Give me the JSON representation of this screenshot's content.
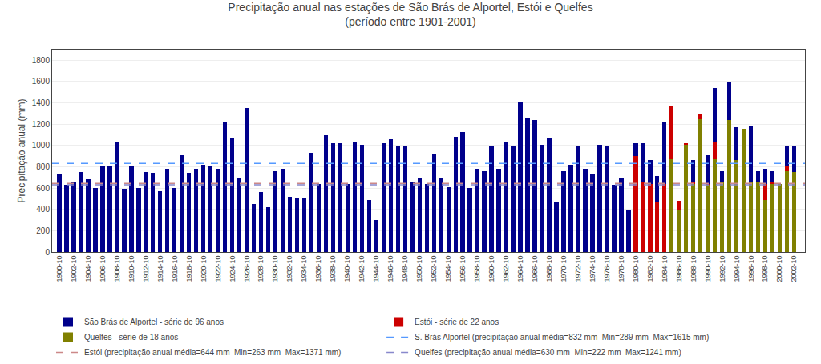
{
  "chart_data": {
    "type": "bar",
    "title": "Precipitação anual nas estações de São Brás de Alportel, Estói e Quelfes\n(período entre 1901-2001)",
    "ylabel": "Precipitação anual (mm)",
    "xlim": [
      1899,
      2003.5
    ],
    "xticks": [
      {
        "value": 1900,
        "label": "1900-10"
      },
      {
        "value": 1902,
        "label": "1902-10"
      },
      {
        "value": 1904,
        "label": "1904-10"
      },
      {
        "value": 1906,
        "label": "1906-10"
      },
      {
        "value": 1908,
        "label": "1908-10"
      },
      {
        "value": 1910,
        "label": "1910-10"
      },
      {
        "value": 1912,
        "label": "1912-10"
      },
      {
        "value": 1914,
        "label": "1914-10"
      },
      {
        "value": 1916,
        "label": "1916-10"
      },
      {
        "value": 1918,
        "label": "1918-10"
      },
      {
        "value": 1920,
        "label": "1920-10"
      },
      {
        "value": 1922,
        "label": "1922-10"
      },
      {
        "value": 1924,
        "label": "1924-10"
      },
      {
        "value": 1926,
        "label": "1926-10"
      },
      {
        "value": 1928,
        "label": "1928-10"
      },
      {
        "value": 1930,
        "label": "1930-10"
      },
      {
        "value": 1932,
        "label": "1932-10"
      },
      {
        "value": 1934,
        "label": "1934-10"
      },
      {
        "value": 1936,
        "label": "1936-10"
      },
      {
        "value": 1938,
        "label": "1938-10"
      },
      {
        "value": 1940,
        "label": "1940-10"
      },
      {
        "value": 1942,
        "label": "1942-10"
      },
      {
        "value": 1944,
        "label": "1944-10"
      },
      {
        "value": 1946,
        "label": "1946-10"
      },
      {
        "value": 1948,
        "label": "1948-10"
      },
      {
        "value": 1950,
        "label": "1950-10"
      },
      {
        "value": 1952,
        "label": "1952-10"
      },
      {
        "value": 1954,
        "label": "1954-10"
      },
      {
        "value": 1956,
        "label": "1956-10"
      },
      {
        "value": 1958,
        "label": "1958-10"
      },
      {
        "value": 1960,
        "label": "1960-10"
      },
      {
        "value": 1962,
        "label": "1962-10"
      },
      {
        "value": 1964,
        "label": "1964-10"
      },
      {
        "value": 1966,
        "label": "1966-10"
      },
      {
        "value": 1968,
        "label": "1968-10"
      },
      {
        "value": 1970,
        "label": "1970-10"
      },
      {
        "value": 1972,
        "label": "1972-10"
      },
      {
        "value": 1974,
        "label": "1974-10"
      },
      {
        "value": 1976,
        "label": "1976-10"
      },
      {
        "value": 1978,
        "label": "1978-10"
      },
      {
        "value": 1980,
        "label": "1980-10"
      },
      {
        "value": 1982,
        "label": "1982-10"
      },
      {
        "value": 1984,
        "label": "1984-10"
      },
      {
        "value": 1986,
        "label": "1986-10"
      },
      {
        "value": 1988,
        "label": "1988-10"
      },
      {
        "value": 1990,
        "label": "1990-10"
      },
      {
        "value": 1992,
        "label": "1992-10"
      },
      {
        "value": 1994,
        "label": "1994-10"
      },
      {
        "value": 1996,
        "label": "1996-10"
      },
      {
        "value": 1998,
        "label": "1998-10"
      },
      {
        "value": 2000,
        "label": "2000-10"
      },
      {
        "value": 2002,
        "label": "2002-10"
      }
    ],
    "ylim": [
      0,
      1900
    ],
    "yticks": [
      0,
      200,
      400,
      600,
      800,
      1000,
      1200,
      1400,
      1600,
      1800
    ],
    "grid": "y",
    "legend": "bottom",
    "series": [
      {
        "name": "São Brás de Alportel - série de 96 anos",
        "type": "bar",
        "color": "#00008B",
        "x": [
          1900,
          1901,
          1902,
          1903,
          1904,
          1905,
          1906,
          1907,
          1908,
          1909,
          1910,
          1911,
          1912,
          1913,
          1914,
          1915,
          1916,
          1917,
          1918,
          1919,
          1920,
          1921,
          1922,
          1923,
          1924,
          1925,
          1926,
          1927,
          1928,
          1929,
          1930,
          1931,
          1932,
          1933,
          1934,
          1935,
          1936,
          1937,
          1938,
          1939,
          1940,
          1941,
          1942,
          1943,
          1944,
          1945,
          1946,
          1947,
          1948,
          1949,
          1950,
          1951,
          1952,
          1953,
          1954,
          1955,
          1956,
          1957,
          1958,
          1959,
          1960,
          1961,
          1962,
          1963,
          1964,
          1965,
          1966,
          1967,
          1968,
          1969,
          1970,
          1971,
          1972,
          1973,
          1974,
          1975,
          1976,
          1977,
          1978,
          1979,
          1980,
          1981,
          1982,
          1983,
          1984,
          1985,
          1986,
          1987,
          1988,
          1989,
          1990,
          1991,
          1992,
          1993,
          1994,
          1995,
          1996,
          1997,
          1998,
          1999,
          2000,
          2001,
          2002
        ],
        "values": [
          730,
          630,
          650,
          750,
          680,
          600,
          810,
          800,
          1040,
          590,
          800,
          600,
          750,
          740,
          570,
          780,
          600,
          910,
          740,
          780,
          820,
          800,
          780,
          1220,
          1070,
          700,
          1350,
          450,
          560,
          420,
          760,
          780,
          520,
          500,
          510,
          930,
          640,
          1100,
          1020,
          1020,
          640,
          1040,
          1010,
          490,
          300,
          1020,
          1060,
          1000,
          990,
          650,
          700,
          640,
          920,
          700,
          610,
          1080,
          1130,
          600,
          780,
          760,
          1000,
          780,
          1040,
          1000,
          1410,
          1260,
          1240,
          1010,
          1070,
          470,
          760,
          820,
          1000,
          780,
          730,
          1010,
          990,
          630,
          700,
          400,
          1020,
          1020,
          860,
          710,
          1220,
          1300,
          400,
          950,
          860,
          1300,
          910,
          1540,
          760,
          1600,
          1170,
          1160,
          1190,
          760,
          780,
          760,
          470,
          1000,
          1000
        ]
      },
      {
        "name": "Estói - série de 22 anos",
        "type": "bar",
        "color": "#CC0000",
        "x": [
          1980,
          1981,
          1982,
          1983,
          1984,
          1985,
          1986,
          1987,
          1988,
          1989,
          1990,
          1991,
          1992,
          1993,
          1994,
          1995,
          1996,
          1997,
          1998,
          1999,
          2000,
          2001
        ],
        "values": [
          900,
          650,
          640,
          470,
          640,
          1370,
          480,
          1020,
          650,
          1300,
          640,
          1040,
          650,
          1200,
          640,
          1010,
          640,
          650,
          640,
          650,
          460,
          800
        ]
      },
      {
        "name": "Quelfes - série de 18 anos",
        "type": "bar",
        "color": "#808000",
        "x": [
          1985,
          1986,
          1987,
          1988,
          1989,
          1990,
          1991,
          1992,
          1993,
          1994,
          1995,
          1996,
          1997,
          1998,
          1999,
          2000,
          2001,
          2002
        ],
        "values": [
          870,
          400,
          1010,
          640,
          1250,
          630,
          870,
          650,
          1240,
          860,
          1160,
          650,
          650,
          490,
          640,
          640,
          760,
          750
        ]
      },
      {
        "name": "S. Brás Alportel (precipitação anual média=832 mm  Min=289 mm  Max=1615 mm)",
        "type": "hline",
        "value": 832,
        "color": "#5599FF",
        "line_style": "dashed"
      },
      {
        "name": "Estói (precipitação anual média=644 mm  Min=263 mm  Max=1371 mm)",
        "type": "hline",
        "value": 644,
        "color": "#CC8888",
        "line_style": "dashed"
      },
      {
        "name": "Quelfes (precipitação anual média=630 mm  Min=222 mm  Max=1241 mm)",
        "type": "hline",
        "value": 630,
        "color": "#8888CC",
        "line_style": "dashed"
      }
    ]
  }
}
